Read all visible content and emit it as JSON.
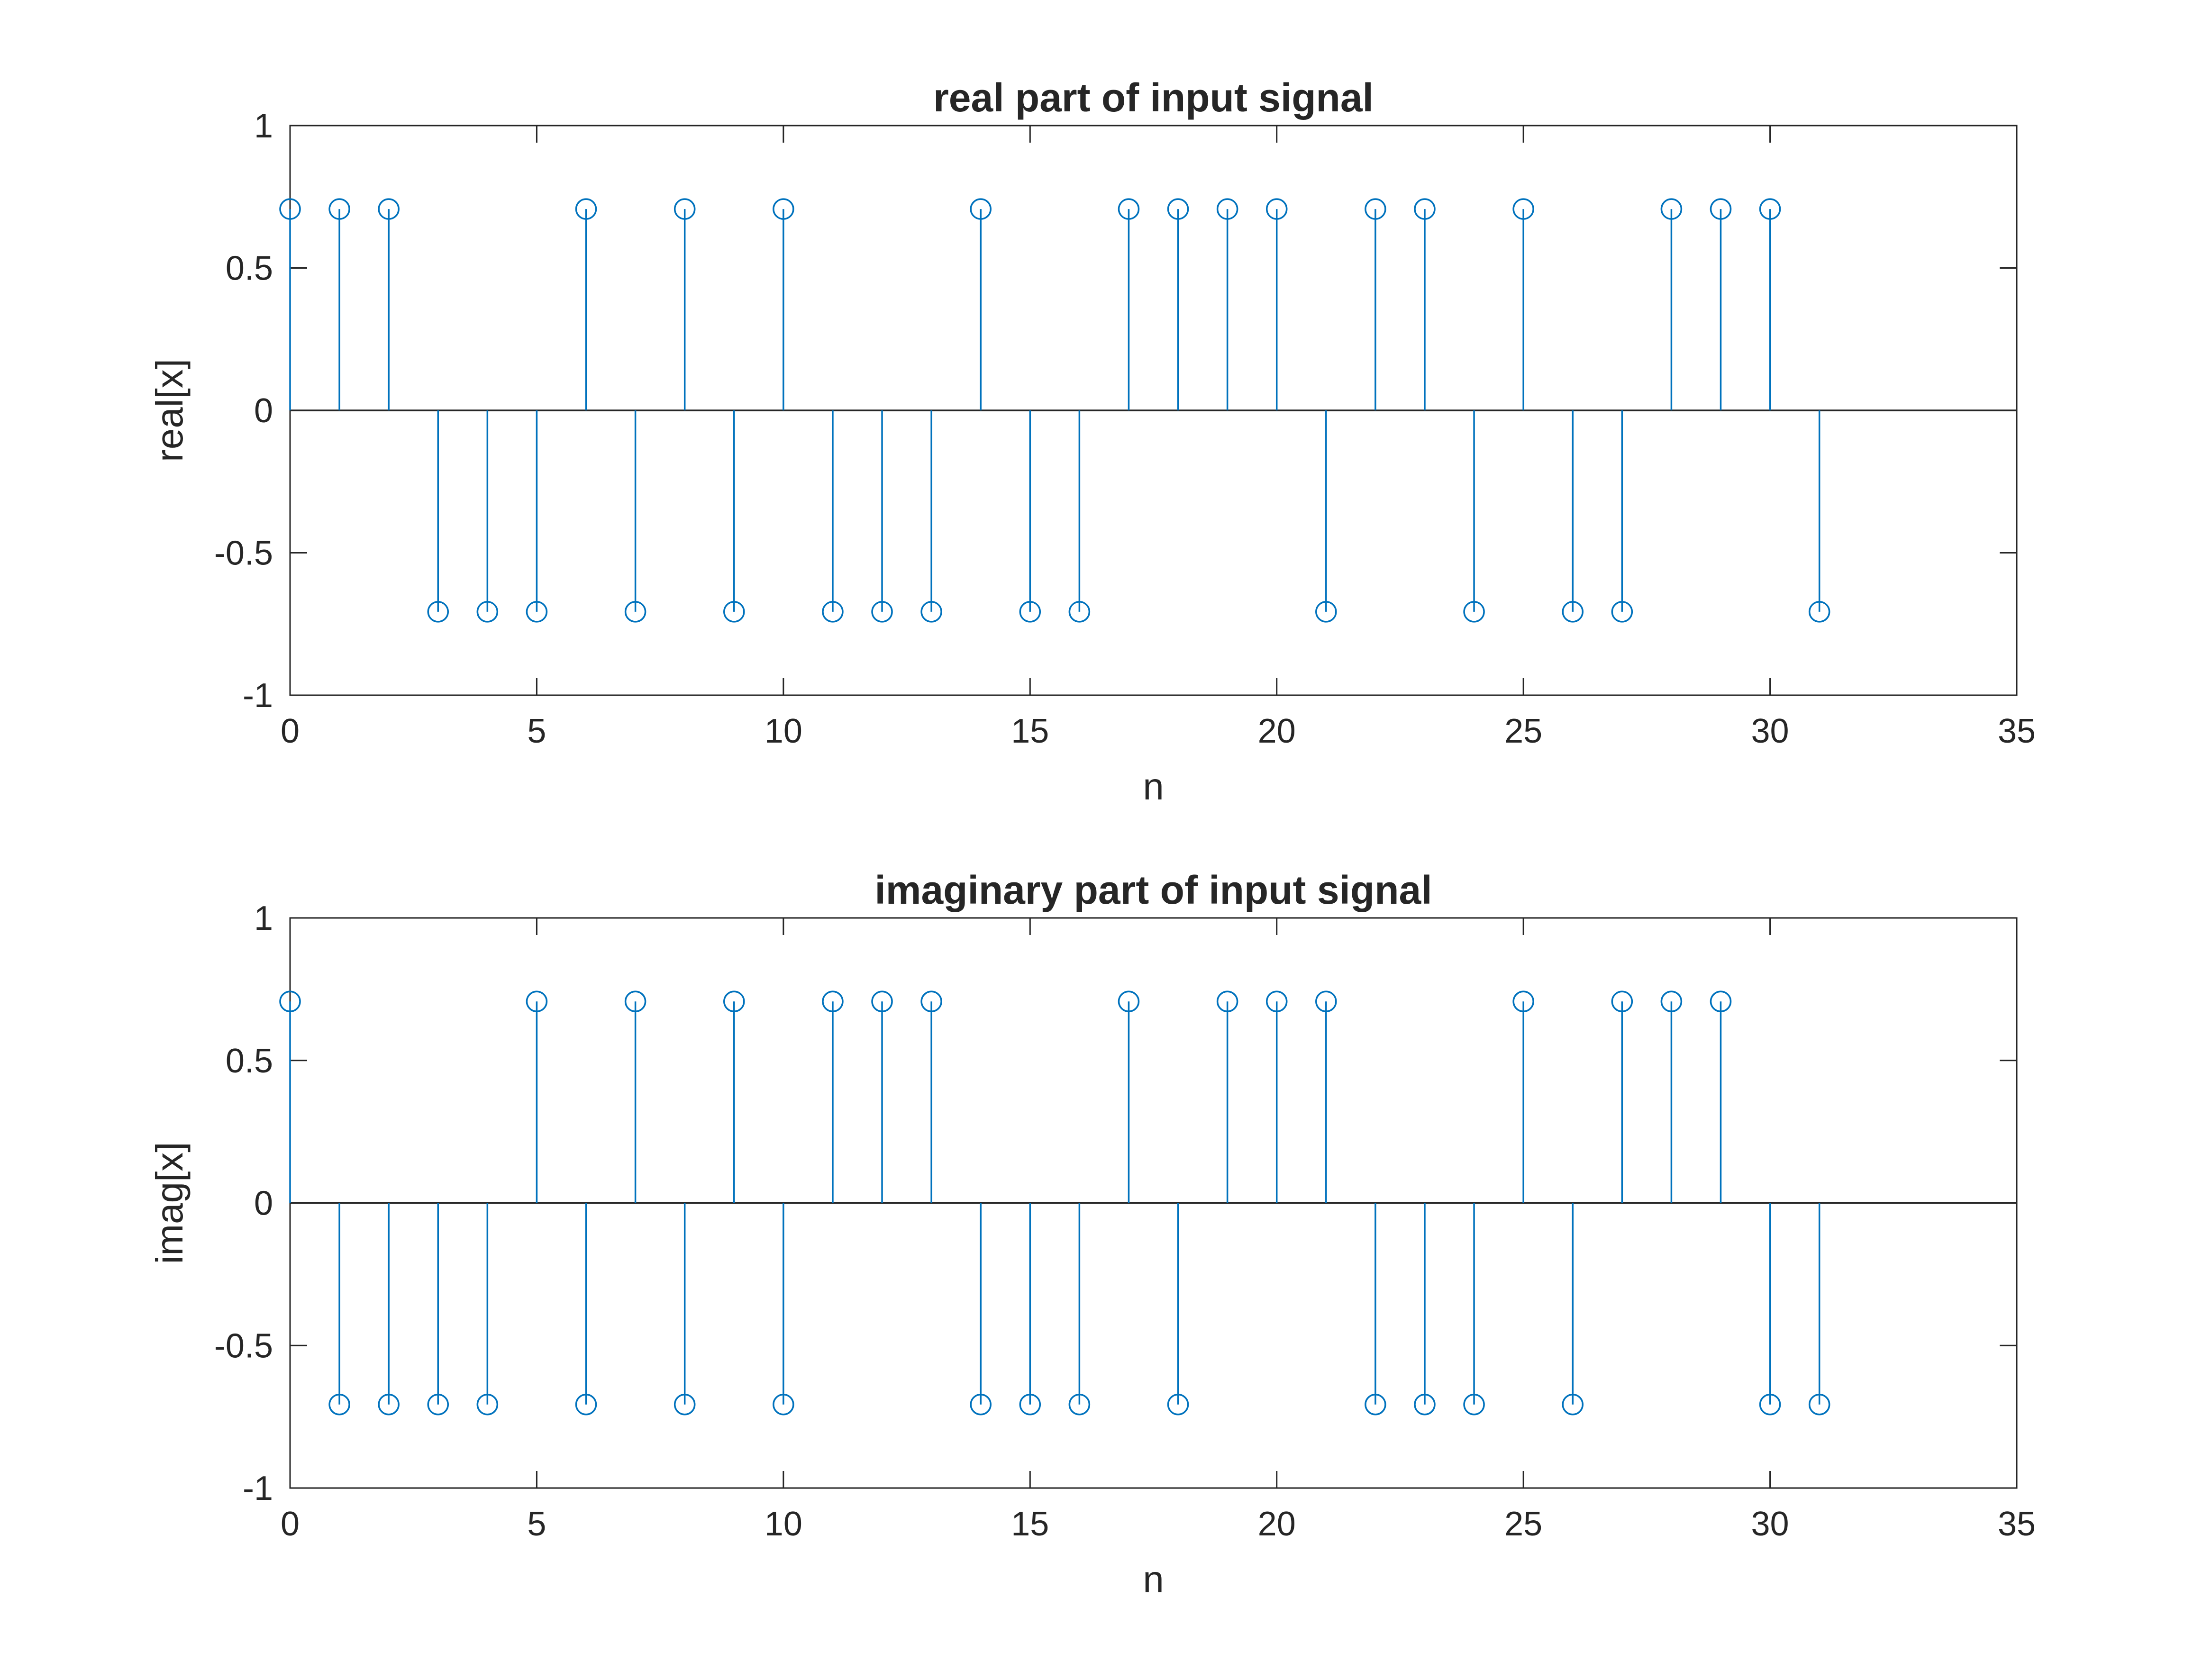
{
  "chart_data": [
    {
      "type": "stem",
      "title": "real part of input signal",
      "xlabel": "n",
      "ylabel": "real[x]",
      "xlim": [
        0,
        35
      ],
      "ylim": [
        -1,
        1
      ],
      "xticks": [
        0,
        5,
        10,
        15,
        20,
        25,
        30,
        35
      ],
      "xtick_labels": [
        "0",
        "5",
        "10",
        "15",
        "20",
        "25",
        "30",
        "35"
      ],
      "yticks": [
        1,
        0.5,
        0,
        -0.5,
        -1
      ],
      "ytick_labels": [
        "1",
        "0.5",
        "0",
        "-0.5",
        "-1"
      ],
      "grid": false,
      "color": "#0072BD",
      "x": [
        0,
        1,
        2,
        3,
        4,
        5,
        6,
        7,
        8,
        9,
        10,
        11,
        12,
        13,
        14,
        15,
        16,
        17,
        18,
        19,
        20,
        21,
        22,
        23,
        24,
        25,
        26,
        27,
        28,
        29,
        30,
        31
      ],
      "values": [
        0.707,
        0.707,
        0.707,
        -0.707,
        -0.707,
        -0.707,
        0.707,
        -0.707,
        0.707,
        -0.707,
        0.707,
        -0.707,
        -0.707,
        -0.707,
        0.707,
        -0.707,
        -0.707,
        0.707,
        0.707,
        0.707,
        0.707,
        -0.707,
        0.707,
        0.707,
        -0.707,
        0.707,
        -0.707,
        -0.707,
        0.707,
        0.707,
        0.707,
        -0.707
      ]
    },
    {
      "type": "stem",
      "title": "imaginary part of input signal",
      "xlabel": "n",
      "ylabel": "imag[x]",
      "xlim": [
        0,
        35
      ],
      "ylim": [
        -1,
        1
      ],
      "xticks": [
        0,
        5,
        10,
        15,
        20,
        25,
        30,
        35
      ],
      "xtick_labels": [
        "0",
        "5",
        "10",
        "15",
        "20",
        "25",
        "30",
        "35"
      ],
      "yticks": [
        1,
        0.5,
        0,
        -0.5,
        -1
      ],
      "ytick_labels": [
        "1",
        "0.5",
        "0",
        "-0.5",
        "-1"
      ],
      "grid": false,
      "color": "#0072BD",
      "x": [
        0,
        1,
        2,
        3,
        4,
        5,
        6,
        7,
        8,
        9,
        10,
        11,
        12,
        13,
        14,
        15,
        16,
        17,
        18,
        19,
        20,
        21,
        22,
        23,
        24,
        25,
        26,
        27,
        28,
        29,
        30,
        31
      ],
      "values": [
        0.707,
        -0.707,
        -0.707,
        -0.707,
        -0.707,
        0.707,
        -0.707,
        0.707,
        -0.707,
        0.707,
        -0.707,
        0.707,
        0.707,
        0.707,
        -0.707,
        -0.707,
        -0.707,
        0.707,
        -0.707,
        0.707,
        0.707,
        0.707,
        -0.707,
        -0.707,
        -0.707,
        0.707,
        -0.707,
        0.707,
        0.707,
        0.707,
        -0.707,
        -0.707
      ]
    }
  ]
}
